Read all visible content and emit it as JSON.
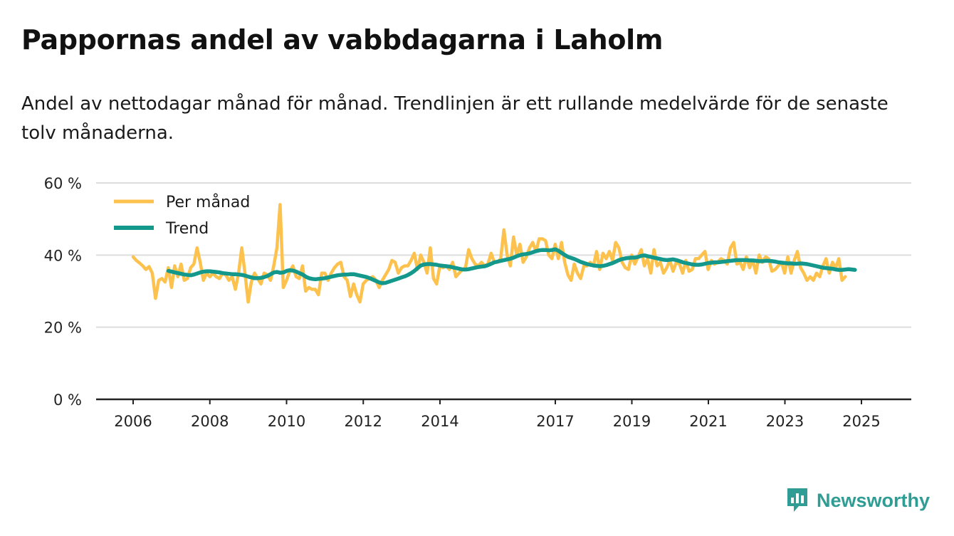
{
  "title": "Pappornas andel av vabbdagarna i Laholm",
  "subtitle": "Andel av nettodagar månad för månad. Trendlinjen är ett rullande medelvärde för de senaste tolv månaderna.",
  "brand": {
    "name": "Newsworthy",
    "icon": "bar-chart-logo-icon"
  },
  "colors": {
    "monthly": "#fcc24d",
    "trend": "#13988b",
    "grid": "#dddddd",
    "axis": "#222222",
    "brand": "#2f9d93"
  },
  "chart_data": {
    "type": "line",
    "title": "Pappornas andel av vabbdagarna i Laholm",
    "xlabel": "",
    "ylabel": "",
    "ylim": [
      0,
      60
    ],
    "xlim": [
      2005.8,
      2026.4
    ],
    "y_ticks": [
      0,
      20,
      40,
      60
    ],
    "y_tick_labels": [
      "0 %",
      "20 %",
      "40 %",
      "60 %"
    ],
    "x_ticks": [
      2006,
      2008,
      2010,
      2012,
      2014,
      2017,
      2019,
      2021,
      2023,
      2025
    ],
    "x_tick_labels": [
      "2006",
      "2008",
      "2010",
      "2012",
      "2014",
      "2017",
      "2019",
      "2021",
      "2023",
      "2025"
    ],
    "grid": true,
    "legend_position": "top-left",
    "series": [
      {
        "name": "Per månad",
        "x_start": 2006.0,
        "step": 0.0833,
        "values": [
          39.5,
          38.5,
          37.8,
          37.0,
          36.0,
          36.8,
          35.0,
          28.0,
          33.0,
          33.5,
          32.5,
          36.5,
          31.0,
          37.0,
          34.0,
          37.5,
          33.0,
          33.5,
          36.5,
          37.5,
          42.0,
          38.0,
          33.0,
          35.0,
          34.0,
          35.0,
          34.0,
          33.5,
          35.0,
          34.5,
          33.0,
          34.0,
          30.5,
          35.0,
          42.0,
          35.0,
          27.0,
          32.5,
          35.0,
          33.5,
          32.0,
          35.0,
          34.5,
          33.0,
          37.0,
          42.0,
          54.0,
          31.0,
          33.0,
          35.5,
          37.0,
          34.0,
          33.5,
          37.0,
          30.0,
          31.0,
          30.5,
          30.5,
          29.0,
          35.0,
          35.0,
          33.0,
          35.0,
          36.5,
          37.5,
          38.0,
          34.0,
          33.0,
          28.5,
          32.0,
          29.0,
          27.0,
          32.0,
          33.0,
          33.5,
          34.0,
          33.0,
          31.0,
          33.0,
          34.5,
          36.0,
          38.5,
          38.0,
          35.0,
          36.5,
          37.0,
          37.0,
          38.5,
          40.5,
          36.0,
          40.0,
          38.0,
          35.0,
          42.0,
          33.5,
          32.0,
          37.0,
          36.5,
          37.0,
          36.0,
          38.0,
          34.0,
          35.0,
          36.0,
          36.5,
          41.5,
          39.0,
          37.5,
          37.0,
          38.0,
          37.0,
          37.5,
          40.5,
          38.0,
          38.0,
          39.0,
          47.0,
          40.0,
          37.0,
          45.0,
          40.0,
          43.0,
          38.0,
          39.5,
          42.0,
          43.5,
          41.0,
          44.5,
          44.5,
          44.0,
          40.0,
          39.0,
          43.0,
          39.0,
          43.5,
          38.0,
          34.5,
          33.0,
          37.5,
          35.0,
          33.5,
          37.0,
          37.0,
          38.0,
          37.0,
          41.0,
          36.0,
          40.5,
          39.0,
          41.0,
          38.5,
          43.5,
          42.0,
          38.0,
          36.5,
          36.0,
          40.0,
          37.5,
          39.5,
          41.5,
          37.0,
          39.0,
          35.0,
          41.5,
          37.0,
          38.0,
          35.0,
          36.5,
          38.5,
          35.5,
          38.0,
          37.5,
          35.0,
          38.5,
          35.5,
          36.0,
          39.0,
          39.0,
          40.0,
          41.0,
          36.0,
          38.5,
          37.5,
          38.0,
          39.0,
          38.5,
          37.5,
          42.0,
          43.5,
          37.5,
          38.0,
          36.0,
          39.5,
          36.5,
          38.5,
          35.0,
          40.0,
          38.0,
          39.5,
          39.0,
          35.5,
          36.0,
          37.0,
          38.0,
          35.0,
          39.5,
          35.0,
          38.5,
          41.0,
          36.5,
          35.0,
          33.0,
          34.0,
          33.0,
          35.0,
          34.0,
          37.0,
          39.0,
          35.0,
          38.0,
          36.5,
          39.0,
          33.0,
          34.0
        ]
      },
      {
        "name": "Trend",
        "x_start": 2006.92,
        "step": 0.0833,
        "values": [
          35.6,
          35.4,
          35.2,
          35.0,
          34.8,
          34.6,
          34.5,
          34.4,
          34.6,
          34.9,
          35.2,
          35.4,
          35.5,
          35.5,
          35.4,
          35.3,
          35.2,
          35.0,
          34.9,
          34.8,
          34.7,
          34.7,
          34.6,
          34.5,
          34.3,
          34.0,
          33.8,
          33.6,
          33.6,
          33.7,
          33.9,
          34.2,
          34.7,
          35.2,
          35.3,
          35.1,
          35.2,
          35.6,
          35.8,
          35.7,
          35.4,
          35.0,
          34.6,
          34.0,
          33.6,
          33.4,
          33.3,
          33.4,
          33.5,
          33.6,
          33.8,
          34.0,
          34.2,
          34.4,
          34.5,
          34.6,
          34.6,
          34.7,
          34.7,
          34.5,
          34.3,
          34.1,
          33.9,
          33.6,
          33.2,
          32.8,
          32.4,
          32.2,
          32.3,
          32.6,
          32.9,
          33.2,
          33.5,
          33.8,
          34.1,
          34.5,
          35.0,
          35.6,
          36.4,
          37.1,
          37.4,
          37.5,
          37.5,
          37.4,
          37.3,
          37.1,
          37.0,
          36.9,
          36.8,
          36.6,
          36.4,
          36.2,
          36.0,
          36.0,
          36.1,
          36.3,
          36.5,
          36.7,
          36.8,
          36.9,
          37.2,
          37.6,
          38.0,
          38.2,
          38.4,
          38.6,
          38.8,
          39.0,
          39.3,
          39.7,
          40.0,
          40.2,
          40.3,
          40.5,
          40.8,
          41.1,
          41.3,
          41.4,
          41.4,
          41.3,
          41.4,
          41.6,
          41.2,
          40.6,
          40.0,
          39.5,
          39.2,
          38.9,
          38.5,
          38.1,
          37.8,
          37.5,
          37.3,
          37.1,
          37.0,
          36.9,
          37.0,
          37.2,
          37.5,
          37.8,
          38.2,
          38.6,
          38.9,
          39.1,
          39.2,
          39.3,
          39.3,
          39.5,
          39.8,
          39.9,
          39.7,
          39.5,
          39.3,
          39.1,
          38.9,
          38.7,
          38.6,
          38.7,
          38.8,
          38.6,
          38.3,
          38.0,
          37.8,
          37.6,
          37.4,
          37.3,
          37.3,
          37.4,
          37.6,
          37.8,
          37.9,
          38.0,
          38.0,
          38.1,
          38.2,
          38.3,
          38.4,
          38.5,
          38.6,
          38.6,
          38.6,
          38.6,
          38.5,
          38.5,
          38.4,
          38.3,
          38.3,
          38.4,
          38.4,
          38.3,
          38.2,
          38.0,
          37.9,
          37.8,
          37.7,
          37.7,
          37.6,
          37.6,
          37.7,
          37.6,
          37.5,
          37.3,
          37.1,
          36.9,
          36.7,
          36.5,
          36.4,
          36.3,
          36.2,
          36.0,
          35.9,
          35.9,
          36.0,
          36.1,
          36.0,
          35.9
        ]
      }
    ]
  }
}
